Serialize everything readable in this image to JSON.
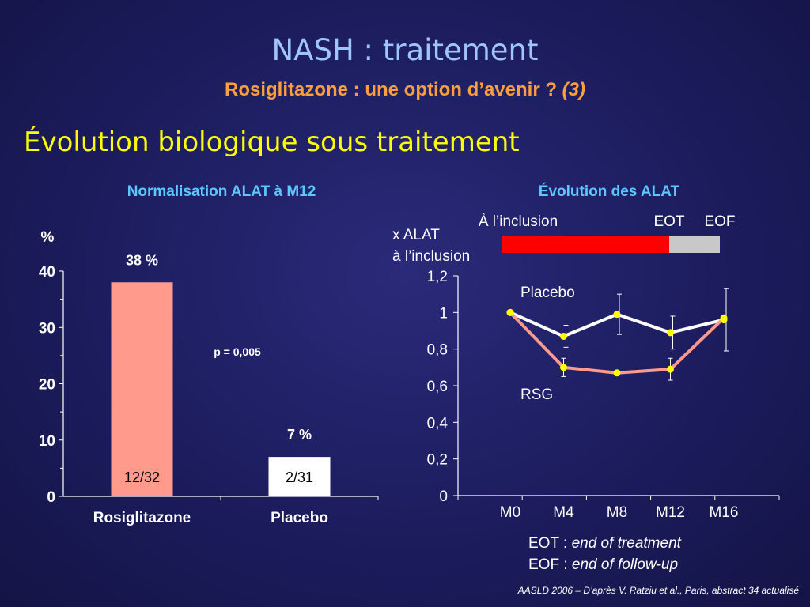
{
  "slide": {
    "title": "NASH : traitement",
    "subtitle_main": "Rosiglitazone : une option d’avenir ?",
    "subtitle_ref": "(3)",
    "section_heading": "Évolution biologique sous traitement",
    "notes": [
      {
        "abbr": "EOT :",
        "text": "end of treatment"
      },
      {
        "abbr": "EOF :",
        "text": "end of follow-up"
      }
    ],
    "source": "AASLD 2006 – D’après V. Ratziu et al., Paris, abstract 34 actualisé"
  },
  "chart_data": [
    {
      "type": "bar",
      "title": "Normalisation ALAT à M12",
      "ylabel": "%",
      "ylim": [
        0,
        40
      ],
      "yticks": [
        "0",
        "10",
        "20",
        "30",
        "40"
      ],
      "categories": [
        "Rosiglitazone",
        "Placebo"
      ],
      "values": [
        38,
        7
      ],
      "value_labels": [
        "38 %",
        "7 %"
      ],
      "counts": [
        "12/32",
        "2/31"
      ],
      "colors": [
        "#ff9a8c",
        "#ffffff"
      ],
      "annotation": "p = 0,005"
    },
    {
      "type": "line",
      "title": "Évolution des ALAT",
      "ylabel": [
        "x ALAT",
        "à l’inclusion"
      ],
      "ylim": [
        0,
        1.2
      ],
      "yticks": [
        "0",
        "0,2",
        "0,4",
        "0,6",
        "0,8",
        "1",
        "1,2"
      ],
      "categories": [
        "M0",
        "M4",
        "M8",
        "M12",
        "M16"
      ],
      "series": [
        {
          "name": "Placebo",
          "values": [
            1.0,
            0.87,
            0.99,
            0.89,
            0.96
          ],
          "err": [
            0,
            0.06,
            0.11,
            0.09,
            0.17
          ],
          "color": "#ffffff"
        },
        {
          "name": "RSG",
          "values": [
            1.0,
            0.7,
            0.67,
            0.69,
            0.97
          ],
          "err": [
            0,
            0.05,
            0,
            0.06,
            0
          ],
          "color": "#ff9a8c"
        }
      ],
      "marker_color": "#ffff00",
      "period_bar": {
        "labels": [
          "À l’inclusion",
          "EOT",
          "EOF"
        ],
        "colors": [
          "#ff0000",
          "#c8c8c8"
        ]
      }
    }
  ]
}
